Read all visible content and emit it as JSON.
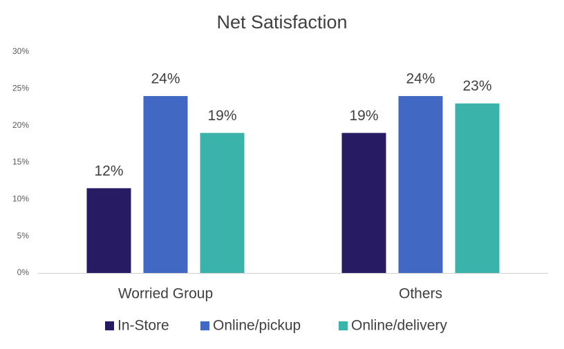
{
  "chart_data": {
    "type": "bar",
    "title": "Net Satisfaction",
    "categories": [
      "Worried Group",
      "Others"
    ],
    "series": [
      {
        "name": "In-Store",
        "color": "#271c64",
        "values": [
          11.5,
          19
        ],
        "value_labels": [
          "12%",
          "19%"
        ]
      },
      {
        "name": "Online/pickup",
        "color": "#4169c4",
        "values": [
          24,
          24
        ],
        "value_labels": [
          "24%",
          "24%"
        ]
      },
      {
        "name": "Online/delivery",
        "color": "#3ab3aa",
        "values": [
          19,
          23
        ],
        "value_labels": [
          "19%",
          "23%"
        ]
      }
    ],
    "ylim": [
      0,
      30
    ],
    "yticks": [
      {
        "value": 0,
        "label": "0%"
      },
      {
        "value": 5,
        "label": "5%"
      },
      {
        "value": 10,
        "label": "10%"
      },
      {
        "value": 15,
        "label": "15%"
      },
      {
        "value": 20,
        "label": "20%"
      },
      {
        "value": 25,
        "label": "25%"
      },
      {
        "value": 30,
        "label": "30%"
      }
    ],
    "grid": false
  }
}
